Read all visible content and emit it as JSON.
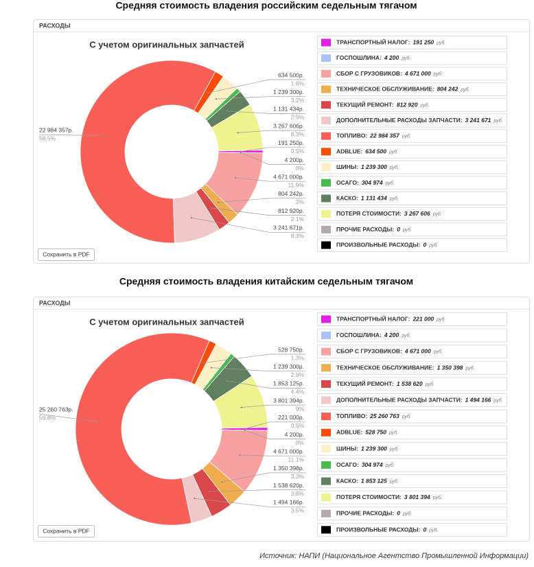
{
  "chart_data": [
    {
      "type": "pie",
      "title": "Средняя стоимость владения российским седельным тягачом",
      "panel_title": "РАСХОДЫ",
      "subtitle": "С учетом оригинальных запчастей",
      "button": "Сохранить в PDF",
      "unit": "руб.",
      "categories": [
        "ТРАНСПОРТНЫЙ НАЛОГ:",
        "ГОСПОШЛИНА:",
        "СБОР С ГРУЗОВИКОВ:",
        "ТЕХНИЧЕСКОЕ ОБСЛУЖИВАНИЕ:",
        "ТЕКУЩИЙ РЕМОНТ:",
        "ДОПОЛНИТЕЛЬНЫЕ РАСХОДЫ ЗАПЧАСТИ:",
        "ТОПЛИВО:",
        "ADBLUE:",
        "ШИНЫ:",
        "ОСАГО:",
        "КАСКО:",
        "ПОТЕРЯ СТОИМОСТИ:",
        "ПРОЧИЕ РАСХОДЫ:",
        "ПРОИЗВОЛЬНЫЕ РАСХОДЫ:"
      ],
      "colors": [
        "#e31ee3",
        "#a9c1f7",
        "#f8a1a1",
        "#f0ad4e",
        "#d9474a",
        "#f1c8c8",
        "#fa5f57",
        "#f94c0a",
        "#fdf0c6",
        "#4cb84e",
        "#5f7f5f",
        "#eef28f",
        "#b3aaaa",
        "#000000"
      ],
      "values": [
        191250,
        4200,
        4671000,
        804242,
        812920,
        3241671,
        22984357,
        634500,
        1239300,
        304974,
        1131434,
        3267606,
        0,
        0
      ],
      "legend_labels": [
        "191 250",
        "4 200",
        "4 671 000",
        "804 242",
        "812 920",
        "3 241 671",
        "22 984 357",
        "634 500",
        "1 239 300",
        "304 974",
        "1 131 434",
        "3 267 606",
        "0",
        "0"
      ],
      "value_labels": [
        "191 250р.",
        "4 200р.",
        "4 671 000р.",
        "804 242р.",
        "812 920р.",
        "3 241 671р.",
        "22 984 357р.",
        "634 500р.",
        "1 239 300р.",
        null,
        "1 131 434р.",
        "3 267 606р.",
        null,
        null
      ],
      "percent_labels": [
        "0.5%",
        "0%",
        "11.9%",
        "2%",
        "2.1%",
        "8.3%",
        "58.5%",
        "1.6%",
        "3.2%",
        null,
        "2.9%",
        "8.3%",
        null,
        null
      ]
    },
    {
      "type": "pie",
      "title": "Средняя стоимость владения китайским седельным тягачом",
      "panel_title": "РАСХОДЫ",
      "subtitle": "С учетом оригинальных запчастей",
      "button": "Сохранить в PDF",
      "unit": "руб.",
      "categories": [
        "ТРАНСПОРТНЫЙ НАЛОГ:",
        "ГОСПОШЛИНА:",
        "СБОР С ГРУЗОВИКОВ:",
        "ТЕХНИЧЕСКОЕ ОБСЛУЖИВАНИЕ:",
        "ТЕКУЩИЙ РЕМОНТ:",
        "ДОПОЛНИТЕЛЬНЫЕ РАСХОДЫ ЗАПЧАСТИ:",
        "ТОПЛИВО:",
        "ADBLUE:",
        "ШИНЫ:",
        "ОСАГО:",
        "КАСКО:",
        "ПОТЕРЯ СТОИМОСТИ:",
        "ПРОЧИЕ РАСХОДЫ:",
        "ПРОИЗВОЛЬНЫЕ РАСХОДЫ:"
      ],
      "colors": [
        "#e31ee3",
        "#a9c1f7",
        "#f8a1a1",
        "#f0ad4e",
        "#d9474a",
        "#f1c8c8",
        "#fa5f57",
        "#f94c0a",
        "#fdf0c6",
        "#4cb84e",
        "#5f7f5f",
        "#eef28f",
        "#b3aaaa",
        "#000000"
      ],
      "values": [
        221000,
        4200,
        4671000,
        1350398,
        1538620,
        1494166,
        25260763,
        528750,
        1239300,
        304974,
        1853125,
        3801394,
        0,
        0
      ],
      "legend_labels": [
        "221 000",
        "4 200",
        "4 671 000",
        "1 350 398",
        "1 538 620",
        "1 494 166",
        "25 260 763",
        "528 750",
        "1 239 300",
        "304 974",
        "1 853 125",
        "3 801 394",
        "0",
        "0"
      ],
      "value_labels": [
        "221 000р.",
        "4 200р.",
        "4 671 000р.",
        "1 350 398р.",
        "1 538 620р.",
        "1 494 166р.",
        "25 260 763р.",
        "528 750р.",
        "1 239 300р.",
        null,
        "1 853 125р.",
        "3 801 394р.",
        null,
        null
      ],
      "percent_labels": [
        "0.5%",
        "0%",
        "11.1%",
        "3.2%",
        "3.6%",
        "3.5%",
        "59.8%",
        "1.3%",
        "2.9%",
        null,
        "4.4%",
        "9%",
        null,
        null
      ]
    }
  ],
  "source": "Источник: НАПИ (Национальное Агентство Промышленной Информации)"
}
